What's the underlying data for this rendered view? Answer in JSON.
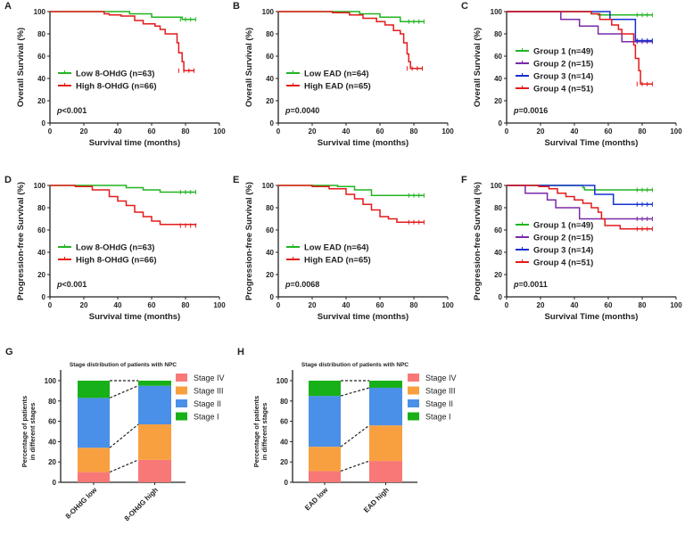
{
  "colors": {
    "green": "#22b422",
    "red": "#e41a1a",
    "purple": "#7a2aa8",
    "blue": "#1530d0",
    "stage4": "#f87878",
    "stage3": "#f8a040",
    "stage2": "#4a90e8",
    "stage1": "#18b018"
  },
  "chart_data": [
    {
      "panel": "A",
      "type": "line",
      "ylabel": "Overall Survival (%)",
      "xlabel": "Survival time (months)",
      "xlim": [
        0,
        100
      ],
      "ylim": [
        0,
        100
      ],
      "xticks": [
        "0",
        "20",
        "40",
        "60",
        "80",
        "100"
      ],
      "yticks": [
        "0",
        "20",
        "40",
        "60",
        "80",
        "100"
      ],
      "p_label": "p",
      "p_value": "<0.001",
      "series": [
        {
          "name": "Low 8-OHdG (n=63)",
          "color": "green",
          "points": [
            [
              0,
              100
            ],
            [
              33,
              100
            ],
            [
              47,
              98
            ],
            [
              60,
              95
            ],
            [
              78,
              93
            ],
            [
              86,
              93
            ]
          ]
        },
        {
          "name": "High 8-OHdG (n=66)",
          "color": "red",
          "points": [
            [
              0,
              100
            ],
            [
              32,
              98
            ],
            [
              35,
              97
            ],
            [
              42,
              96
            ],
            [
              50,
              92
            ],
            [
              55,
              89
            ],
            [
              62,
              87
            ],
            [
              65,
              84
            ],
            [
              68,
              80
            ],
            [
              74,
              80
            ],
            [
              75,
              72
            ],
            [
              76,
              63
            ],
            [
              78,
              55
            ],
            [
              79,
              47
            ],
            [
              85,
              47
            ]
          ]
        }
      ]
    },
    {
      "panel": "B",
      "type": "line",
      "ylabel": "Overall Survival (%)",
      "xlabel": "Survival time (months)",
      "xlim": [
        0,
        100
      ],
      "ylim": [
        0,
        100
      ],
      "xticks": [
        "0",
        "20",
        "40",
        "60",
        "80",
        "100"
      ],
      "yticks": [
        "0",
        "20",
        "40",
        "60",
        "80",
        "100"
      ],
      "p_label": "p",
      "p_value": "=0.0040",
      "series": [
        {
          "name": "Low EAD (n=64)",
          "color": "green",
          "points": [
            [
              0,
              100
            ],
            [
              35,
              100
            ],
            [
              48,
              98
            ],
            [
              60,
              95
            ],
            [
              72,
              91
            ],
            [
              86,
              91
            ]
          ]
        },
        {
          "name": "High EAD (n=65)",
          "color": "red",
          "points": [
            [
              0,
              100
            ],
            [
              32,
              99
            ],
            [
              42,
              97
            ],
            [
              50,
              94
            ],
            [
              58,
              91
            ],
            [
              63,
              88
            ],
            [
              68,
              83
            ],
            [
              72,
              80
            ],
            [
              74,
              72
            ],
            [
              76,
              62
            ],
            [
              77,
              55
            ],
            [
              78,
              49
            ],
            [
              85,
              49
            ]
          ]
        }
      ]
    },
    {
      "panel": "C",
      "type": "line",
      "ylabel": "Overall Survival (%)",
      "xlabel": "Survival Time (months)",
      "xlim": [
        0,
        100
      ],
      "ylim": [
        0,
        100
      ],
      "xticks": [
        "0",
        "20",
        "40",
        "60",
        "80",
        "100"
      ],
      "yticks": [
        "0",
        "20",
        "40",
        "60",
        "80",
        "100"
      ],
      "p_label": "p",
      "p_value": "=0.0016",
      "series": [
        {
          "name": "Group 1 (n=49)",
          "color": "green",
          "points": [
            [
              0,
              100
            ],
            [
              50,
              98
            ],
            [
              54,
              97
            ],
            [
              86,
              97
            ]
          ]
        },
        {
          "name": "Group 2 (n=15)",
          "color": "purple",
          "points": [
            [
              0,
              100
            ],
            [
              32,
              93
            ],
            [
              43,
              87
            ],
            [
              54,
              80
            ],
            [
              68,
              73
            ],
            [
              86,
              73
            ]
          ]
        },
        {
          "name": "Group 3 (n=14)",
          "color": "blue",
          "points": [
            [
              0,
              100
            ],
            [
              60,
              100
            ],
            [
              61,
              93
            ],
            [
              76,
              93
            ],
            [
              76,
              74
            ],
            [
              86,
              74
            ]
          ]
        },
        {
          "name": "Group 4 (n=51)",
          "color": "red",
          "points": [
            [
              0,
              100
            ],
            [
              50,
              98
            ],
            [
              55,
              93
            ],
            [
              62,
              88
            ],
            [
              66,
              84
            ],
            [
              68,
              80
            ],
            [
              74,
              80
            ],
            [
              75,
              70
            ],
            [
              76,
              58
            ],
            [
              78,
              47
            ],
            [
              79,
              35
            ],
            [
              86,
              35
            ]
          ]
        }
      ]
    },
    {
      "panel": "D",
      "type": "line",
      "ylabel": "Progression-free Survival (%)",
      "xlabel": "Survival time (months)",
      "xlim": [
        0,
        100
      ],
      "ylim": [
        0,
        100
      ],
      "xticks": [
        "0",
        "20",
        "40",
        "60",
        "80",
        "100"
      ],
      "yticks": [
        "0",
        "20",
        "40",
        "60",
        "80",
        "100"
      ],
      "p_label": "p",
      "p_value": "<0.001",
      "series": [
        {
          "name": "Low 8-OHdG (n=63)",
          "color": "green",
          "points": [
            [
              0,
              100
            ],
            [
              40,
              100
            ],
            [
              45,
              98
            ],
            [
              55,
              96
            ],
            [
              65,
              94
            ],
            [
              86,
              94
            ]
          ]
        },
        {
          "name": "High 8-OHdG (n=66)",
          "color": "red",
          "points": [
            [
              0,
              100
            ],
            [
              15,
              99
            ],
            [
              25,
              96
            ],
            [
              35,
              90
            ],
            [
              40,
              86
            ],
            [
              45,
              82
            ],
            [
              50,
              76
            ],
            [
              55,
              72
            ],
            [
              60,
              68
            ],
            [
              65,
              65
            ],
            [
              86,
              64
            ]
          ]
        }
      ]
    },
    {
      "panel": "E",
      "type": "line",
      "ylabel": "Progression-free Survival (%)",
      "xlabel": "Survival time (months)",
      "xlim": [
        0,
        100
      ],
      "ylim": [
        0,
        100
      ],
      "xticks": [
        "0",
        "20",
        "40",
        "60",
        "80",
        "100"
      ],
      "yticks": [
        "0",
        "20",
        "40",
        "60",
        "80",
        "100"
      ],
      "p_label": "p",
      "p_value": "=0.0068",
      "series": [
        {
          "name": "Low EAD (n=64)",
          "color": "green",
          "points": [
            [
              0,
              100
            ],
            [
              35,
              99
            ],
            [
              45,
              96
            ],
            [
              55,
              91
            ],
            [
              86,
              91
            ]
          ]
        },
        {
          "name": "High EAD (n=65)",
          "color": "red",
          "points": [
            [
              0,
              100
            ],
            [
              20,
              99
            ],
            [
              30,
              97
            ],
            [
              40,
              92
            ],
            [
              45,
              88
            ],
            [
              50,
              83
            ],
            [
              55,
              78
            ],
            [
              60,
              72
            ],
            [
              65,
              70
            ],
            [
              70,
              67
            ],
            [
              86,
              67
            ]
          ]
        }
      ]
    },
    {
      "panel": "F",
      "type": "line",
      "ylabel": "Progression-free Survival (%)",
      "xlabel": "Survival Time (months)",
      "xlim": [
        0,
        100
      ],
      "ylim": [
        0,
        100
      ],
      "xticks": [
        "0",
        "20",
        "40",
        "60",
        "80",
        "100"
      ],
      "yticks": [
        "0",
        "20",
        "40",
        "60",
        "80",
        "100"
      ],
      "p_label": "p",
      "p_value": "=0.0011",
      "series": [
        {
          "name": "Group 1 (n=49)",
          "color": "green",
          "points": [
            [
              0,
              100
            ],
            [
              45,
              98
            ],
            [
              46,
              96
            ],
            [
              86,
              96
            ]
          ]
        },
        {
          "name": "Group 2 (n=15)",
          "color": "purple",
          "points": [
            [
              0,
              100
            ],
            [
              11,
              93
            ],
            [
              24,
              87
            ],
            [
              29,
              80
            ],
            [
              42,
              80
            ],
            [
              43,
              70
            ],
            [
              86,
              70
            ]
          ]
        },
        {
          "name": "Group 3 (n=14)",
          "color": "blue",
          "points": [
            [
              0,
              100
            ],
            [
              51,
              100
            ],
            [
              52,
              92
            ],
            [
              63,
              92
            ],
            [
              63,
              83
            ],
            [
              86,
              83
            ]
          ]
        },
        {
          "name": "Group 4 (n=51)",
          "color": "red",
          "points": [
            [
              0,
              100
            ],
            [
              19,
              99
            ],
            [
              25,
              97
            ],
            [
              30,
              93
            ],
            [
              35,
              90
            ],
            [
              40,
              87
            ],
            [
              45,
              84
            ],
            [
              50,
              80
            ],
            [
              54,
              76
            ],
            [
              56,
              70
            ],
            [
              58,
              64
            ],
            [
              67,
              64
            ],
            [
              67,
              61
            ],
            [
              86,
              61
            ]
          ]
        }
      ]
    },
    {
      "panel": "G",
      "type": "bar",
      "title": "Stage distribution of patients with NPC",
      "ylabel": "Percentage of patients in different stages",
      "ylabel_lines": [
        "Percentage of patients",
        "in different stages"
      ],
      "ylim": [
        0,
        100
      ],
      "yticks": [
        "0",
        "20",
        "40",
        "60",
        "80",
        "100"
      ],
      "categories": [
        "8-OHdG  low",
        "8-OHdG  high"
      ],
      "series": [
        {
          "name": "Stage IV",
          "color": "stage4",
          "values": [
            10,
            22
          ]
        },
        {
          "name": "Stage III",
          "color": "stage3",
          "values": [
            24,
            35
          ]
        },
        {
          "name": "Stage II",
          "color": "stage2",
          "values": [
            49,
            38
          ]
        },
        {
          "name": "Stage I",
          "color": "stage1",
          "values": [
            17,
            5
          ]
        }
      ]
    },
    {
      "panel": "H",
      "type": "bar",
      "title": "Stage distribution of patients with NPC",
      "ylabel": "Percentage of patients in different stages",
      "ylabel_lines": [
        "Percentage of patients",
        "in different stages"
      ],
      "ylim": [
        0,
        100
      ],
      "yticks": [
        "0",
        "20",
        "40",
        "60",
        "80",
        "100"
      ],
      "categories": [
        "EAD low",
        "EAD high"
      ],
      "series": [
        {
          "name": "Stage IV",
          "color": "stage4",
          "values": [
            11,
            21
          ]
        },
        {
          "name": "Stage III",
          "color": "stage3",
          "values": [
            24,
            35
          ]
        },
        {
          "name": "Stage II",
          "color": "stage2",
          "values": [
            50,
            37
          ]
        },
        {
          "name": "Stage I",
          "color": "stage1",
          "values": [
            15,
            7
          ]
        }
      ]
    }
  ]
}
